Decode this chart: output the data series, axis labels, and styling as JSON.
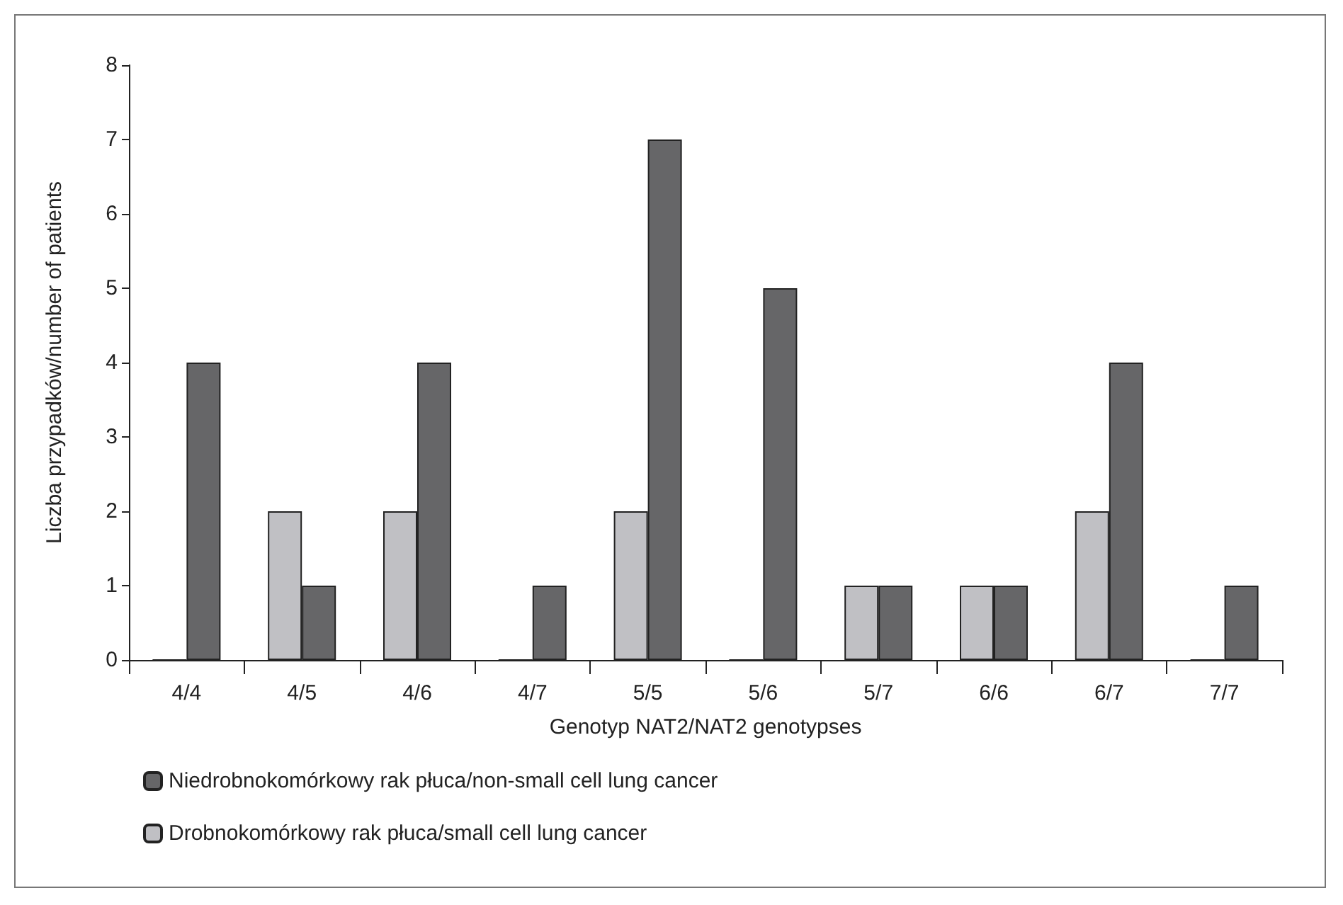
{
  "chart_data": {
    "type": "bar",
    "xlabel": "Genotyp NAT2/NAT2 genotypses",
    "ylabel": "Liczba przypadków/number of patients",
    "categories": [
      "4/4",
      "4/5",
      "4/6",
      "4/7",
      "5/5",
      "5/6",
      "5/7",
      "6/6",
      "6/7",
      "7/7"
    ],
    "series": [
      {
        "name": "Drobnokomórkowy rak płuca/small cell lung cancer",
        "color": "#c0c0c4",
        "values": [
          0,
          2,
          2,
          0,
          2,
          0,
          1,
          1,
          2,
          0
        ]
      },
      {
        "name": "Niedrobnokomórkowy rak płuca/non-small cell lung cancer",
        "color": "#666668",
        "values": [
          4,
          1,
          4,
          1,
          7,
          5,
          1,
          1,
          4,
          1
        ]
      }
    ],
    "ylim": [
      0,
      8
    ],
    "yticks": [
      0,
      1,
      2,
      3,
      4,
      5,
      6,
      7,
      8
    ],
    "grid": false,
    "legend": "bottom left"
  }
}
